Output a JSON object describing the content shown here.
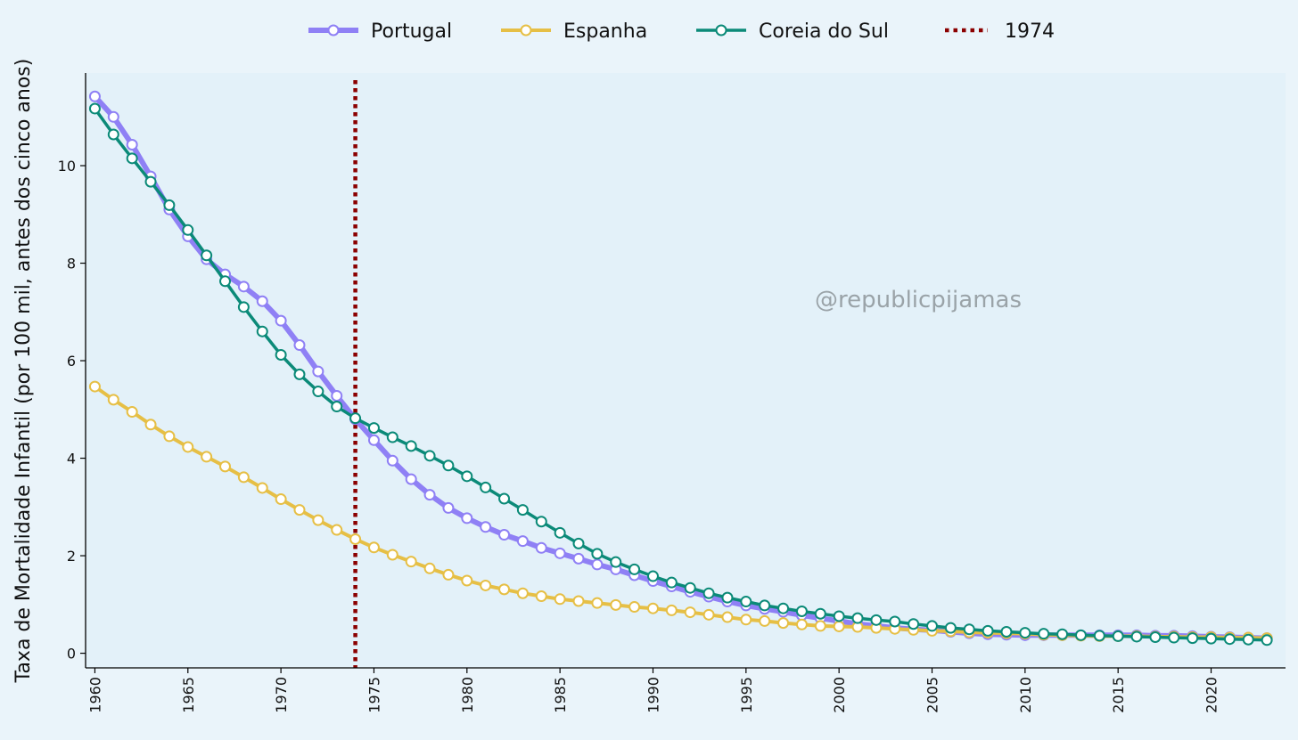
{
  "chart_data": {
    "type": "line",
    "ylabel": "Taxa de Mortalidade Infantil (por 100 mil, antes dos cinco anos)",
    "xlabel": "",
    "xlim": [
      1959.5,
      2024.0
    ],
    "ylim": [
      -0.3,
      11.9
    ],
    "xticks": [
      1960,
      1965,
      1970,
      1975,
      1980,
      1985,
      1990,
      1995,
      2000,
      2005,
      2010,
      2015,
      2020
    ],
    "yticks": [
      0,
      2,
      4,
      6,
      8,
      10
    ],
    "x": [
      1960,
      1961,
      1962,
      1963,
      1964,
      1965,
      1966,
      1967,
      1968,
      1969,
      1970,
      1971,
      1972,
      1973,
      1974,
      1975,
      1976,
      1977,
      1978,
      1979,
      1980,
      1981,
      1982,
      1983,
      1984,
      1985,
      1986,
      1987,
      1988,
      1989,
      1990,
      1991,
      1992,
      1993,
      1994,
      1995,
      1996,
      1997,
      1998,
      1999,
      2000,
      2001,
      2002,
      2003,
      2004,
      2005,
      2006,
      2007,
      2008,
      2009,
      2010,
      2011,
      2012,
      2013,
      2014,
      2015,
      2016,
      2017,
      2018,
      2019,
      2020,
      2021,
      2022,
      2023
    ],
    "series": [
      {
        "name": "Portugal",
        "color": "#8f80f5",
        "values": [
          11.42,
          11.0,
          10.43,
          9.78,
          9.1,
          8.55,
          8.08,
          7.77,
          7.52,
          7.22,
          6.82,
          6.32,
          5.78,
          5.28,
          4.8,
          4.37,
          3.95,
          3.57,
          3.25,
          2.98,
          2.77,
          2.59,
          2.43,
          2.3,
          2.16,
          2.05,
          1.94,
          1.82,
          1.72,
          1.6,
          1.48,
          1.37,
          1.26,
          1.16,
          1.06,
          0.98,
          0.91,
          0.85,
          0.78,
          0.72,
          0.66,
          0.6,
          0.56,
          0.52,
          0.49,
          0.47,
          0.44,
          0.41,
          0.39,
          0.38,
          0.37,
          0.37,
          0.37,
          0.37,
          0.37,
          0.37,
          0.37,
          0.36,
          0.36,
          0.35,
          0.34,
          0.33,
          0.32,
          0.31
        ]
      },
      {
        "name": "Espanha",
        "color": "#e6bf45",
        "values": [
          5.47,
          5.2,
          4.95,
          4.69,
          4.45,
          4.23,
          4.03,
          3.83,
          3.61,
          3.39,
          3.16,
          2.94,
          2.73,
          2.53,
          2.34,
          2.17,
          2.02,
          1.88,
          1.74,
          1.61,
          1.49,
          1.39,
          1.31,
          1.23,
          1.17,
          1.11,
          1.07,
          1.03,
          0.99,
          0.95,
          0.92,
          0.88,
          0.84,
          0.79,
          0.74,
          0.69,
          0.66,
          0.62,
          0.59,
          0.56,
          0.55,
          0.54,
          0.52,
          0.5,
          0.48,
          0.46,
          0.45,
          0.43,
          0.42,
          0.41,
          0.4,
          0.38,
          0.37,
          0.36,
          0.35,
          0.35,
          0.35,
          0.34,
          0.34,
          0.33,
          0.33,
          0.32,
          0.32,
          0.31
        ]
      },
      {
        "name": "Coreia do Sul",
        "color": "#0b8a78",
        "values": [
          11.17,
          10.64,
          10.15,
          9.67,
          9.19,
          8.68,
          8.16,
          7.63,
          7.1,
          6.6,
          6.12,
          5.72,
          5.37,
          5.06,
          4.82,
          4.62,
          4.43,
          4.25,
          4.05,
          3.85,
          3.63,
          3.4,
          3.17,
          2.94,
          2.7,
          2.47,
          2.25,
          2.04,
          1.87,
          1.72,
          1.58,
          1.45,
          1.34,
          1.23,
          1.14,
          1.06,
          0.98,
          0.92,
          0.86,
          0.81,
          0.76,
          0.72,
          0.68,
          0.65,
          0.6,
          0.56,
          0.52,
          0.49,
          0.46,
          0.44,
          0.42,
          0.4,
          0.39,
          0.37,
          0.36,
          0.35,
          0.34,
          0.33,
          0.32,
          0.31,
          0.3,
          0.29,
          0.28,
          0.27
        ]
      }
    ],
    "vline": {
      "x": 1974,
      "label": "1974",
      "color": "#8b0000"
    },
    "legend": [
      "Portugal",
      "Espanha",
      "Coreia do Sul",
      "1974"
    ],
    "legend_position": "top-center"
  },
  "watermark": "@republicpijamas"
}
